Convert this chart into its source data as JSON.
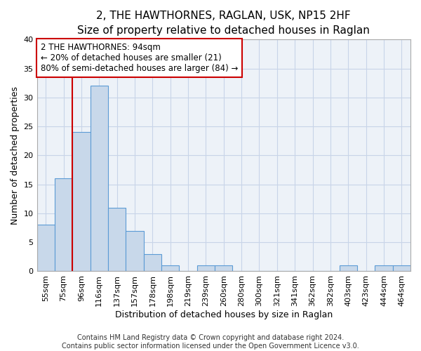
{
  "title": "2, THE HAWTHORNES, RAGLAN, USK, NP15 2HF",
  "subtitle": "Size of property relative to detached houses in Raglan",
  "xlabel": "Distribution of detached houses by size in Raglan",
  "ylabel": "Number of detached properties",
  "categories": [
    "55sqm",
    "75sqm",
    "96sqm",
    "116sqm",
    "137sqm",
    "157sqm",
    "178sqm",
    "198sqm",
    "219sqm",
    "239sqm",
    "260sqm",
    "280sqm",
    "300sqm",
    "321sqm",
    "341sqm",
    "362sqm",
    "382sqm",
    "403sqm",
    "423sqm",
    "444sqm",
    "464sqm"
  ],
  "values": [
    8,
    16,
    24,
    32,
    11,
    7,
    3,
    1,
    0,
    1,
    1,
    0,
    0,
    0,
    0,
    0,
    0,
    1,
    0,
    1,
    1
  ],
  "bar_color": "#c8d8ea",
  "bar_edge_color": "#5b9bd5",
  "vline_color": "#cc0000",
  "vline_x_index": 2,
  "annotation_line1": "2 THE HAWTHORNES: 94sqm",
  "annotation_line2": "← 20% of detached houses are smaller (21)",
  "annotation_line3": "80% of semi-detached houses are larger (84) →",
  "annotation_box_color": "#ffffff",
  "annotation_box_edge_color": "#cc0000",
  "ylim": [
    0,
    40
  ],
  "yticks": [
    0,
    5,
    10,
    15,
    20,
    25,
    30,
    35,
    40
  ],
  "footer_text": "Contains HM Land Registry data © Crown copyright and database right 2024.\nContains public sector information licensed under the Open Government Licence v3.0.",
  "title_fontsize": 11,
  "subtitle_fontsize": 10,
  "xlabel_fontsize": 9,
  "ylabel_fontsize": 9,
  "tick_fontsize": 8,
  "annotation_fontsize": 8.5,
  "footer_fontsize": 7,
  "grid_color": "#c8d4e8",
  "background_color": "#edf2f8"
}
